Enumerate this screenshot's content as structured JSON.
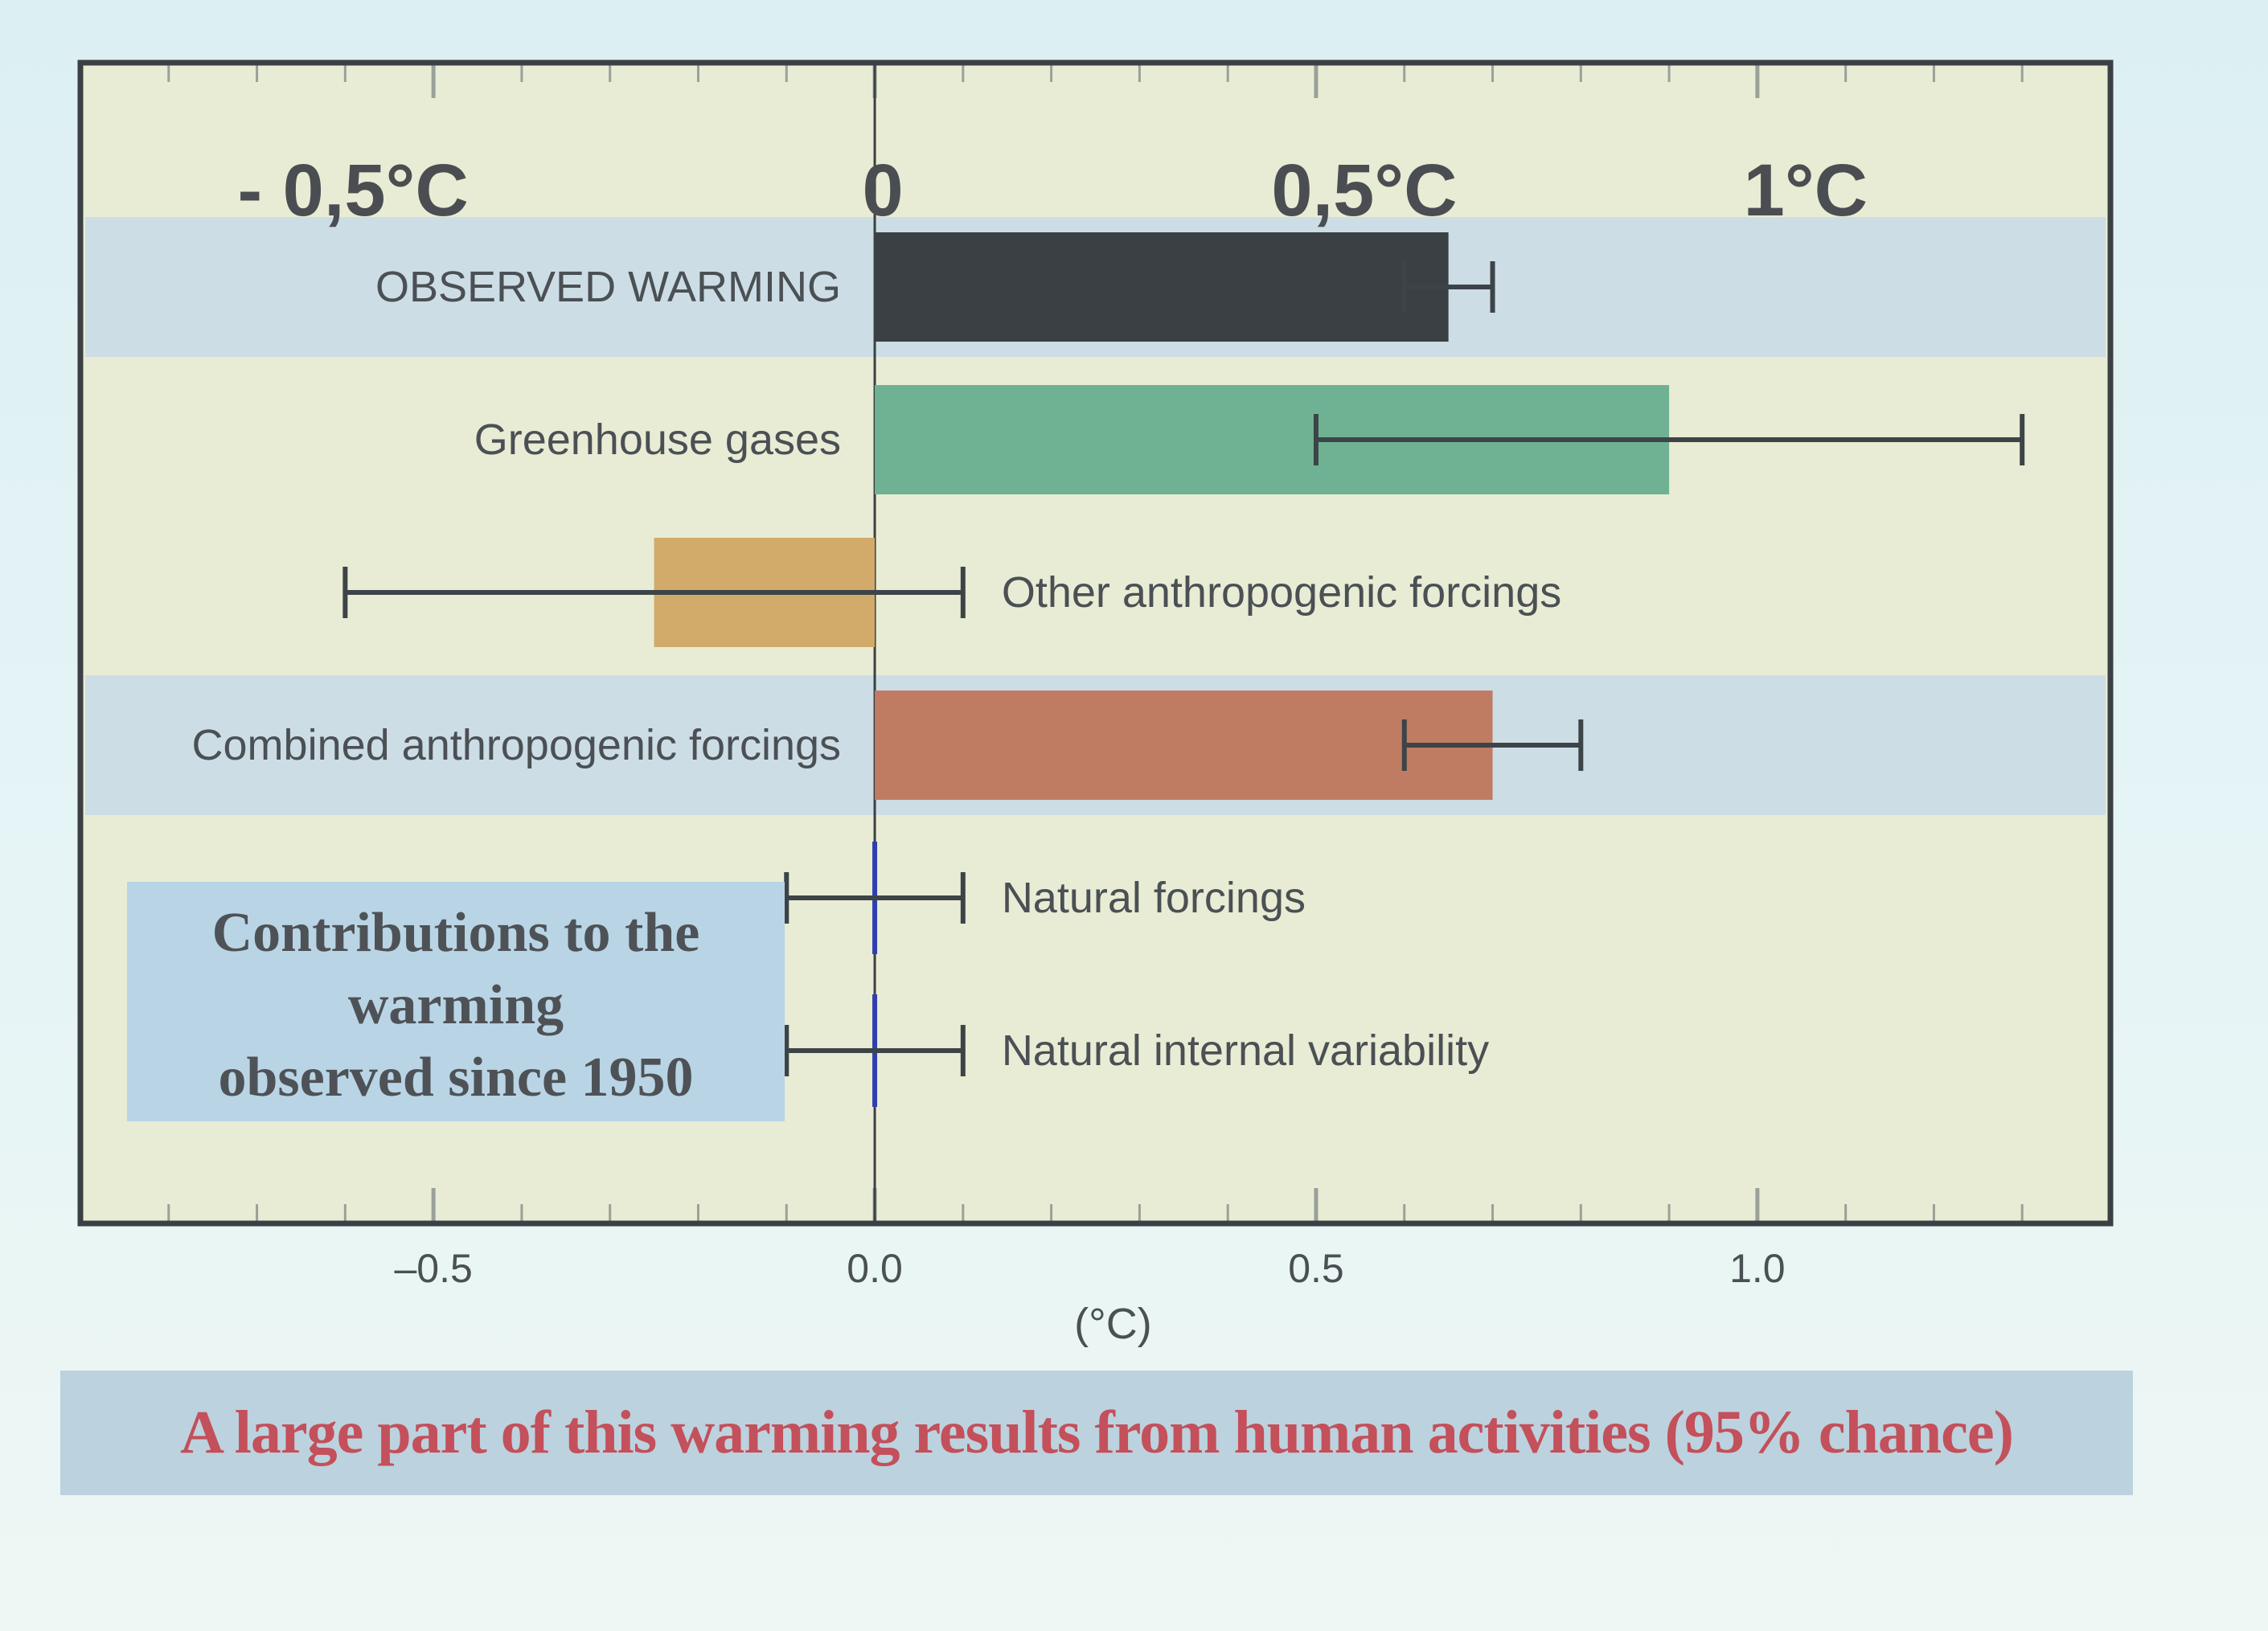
{
  "chart_data": {
    "type": "bar",
    "orientation": "horizontal",
    "categories": [
      "OBSERVED WARMING",
      "Greenhouse gases",
      "Other anthropogenic forcings",
      "Combined anthropogenic forcings",
      "Natural forcings",
      "Natural internal variability"
    ],
    "values": [
      0.65,
      0.9,
      -0.25,
      0.7,
      0.0,
      0.0
    ],
    "error_low": [
      0.6,
      0.5,
      -0.6,
      0.6,
      -0.1,
      -0.1
    ],
    "error_high": [
      0.7,
      1.3,
      0.1,
      0.8,
      0.1,
      0.1
    ],
    "colors": [
      "#3a4043",
      "#6fb293",
      "#d2aa6a",
      "#c07c62",
      "#2f3fb0",
      "#2f3fb0"
    ],
    "row_bands": [
      true,
      false,
      false,
      true,
      false,
      false
    ],
    "label_side": [
      "left",
      "left",
      "right",
      "left",
      "right",
      "right"
    ],
    "xlim": [
      -0.9,
      1.4
    ],
    "major_ticks": [
      -0.5,
      0.0,
      0.5,
      1.0
    ],
    "minor_step": 0.1,
    "xlabel": "(°C)",
    "tick_labels_bottom": [
      "–0.5",
      "0.0",
      "0.5",
      "1.0"
    ],
    "tick_labels_top": [
      "- 0,5°C",
      "0",
      "0,5°C",
      "1°C"
    ],
    "inset_title": [
      "Contributions to the",
      "warming",
      "observed since 1950"
    ],
    "grid": false
  },
  "caption": "A large part of this warming results from human activities (95% chance)",
  "colors": {
    "plot_background": "#e8ecd4",
    "band": "#cddde6",
    "frame": "#3a4043",
    "inset_background": "#b9d5e5",
    "inset_text": "#4e5256",
    "caption_background": "#bcd2de",
    "caption_text": "#c3505a"
  }
}
